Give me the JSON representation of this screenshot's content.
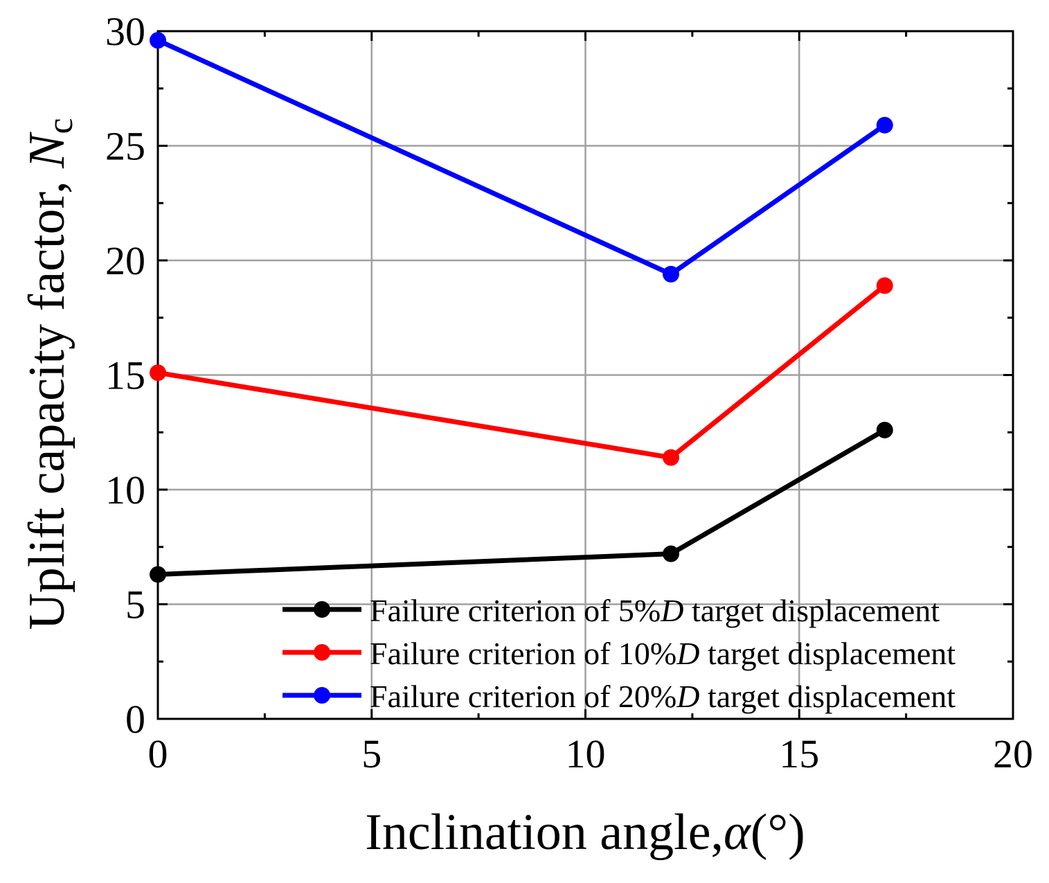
{
  "chart_data": {
    "type": "line",
    "x": [
      0,
      12,
      17
    ],
    "series": [
      {
        "name_prefix": "Failure criterion of 5%",
        "name_italic": "D",
        "name_suffix": " target displacement",
        "color": "#000000",
        "values": [
          6.3,
          7.2,
          12.6
        ]
      },
      {
        "name_prefix": "Failure criterion of 10%",
        "name_italic": "D",
        "name_suffix": " target displacement",
        "color": "#ff0000",
        "values": [
          15.1,
          11.4,
          18.9
        ]
      },
      {
        "name_prefix": "Failure criterion of 20%",
        "name_italic": "D",
        "name_suffix": " target displacement",
        "color": "#0000ff",
        "values": [
          29.6,
          19.4,
          25.9
        ]
      }
    ],
    "xlim": [
      0,
      20
    ],
    "ylim": [
      0,
      30
    ],
    "xticks": [
      0,
      5,
      10,
      15,
      20
    ],
    "yticks": [
      0,
      5,
      10,
      15,
      20,
      25,
      30
    ],
    "xticks_minor": [
      2.5,
      7.5,
      12.5,
      17.5
    ],
    "yticks_minor": [
      2.5,
      7.5,
      12.5,
      17.5,
      22.5,
      27.5
    ],
    "xlabel": {
      "text": "Inclination angle,",
      "symbol": "α",
      "unit": "(°)"
    },
    "ylabel": {
      "text": "Uplift capacity factor, ",
      "symbol": "N",
      "subscript": "c"
    },
    "grid": true,
    "legend_position": "bottom-right"
  }
}
